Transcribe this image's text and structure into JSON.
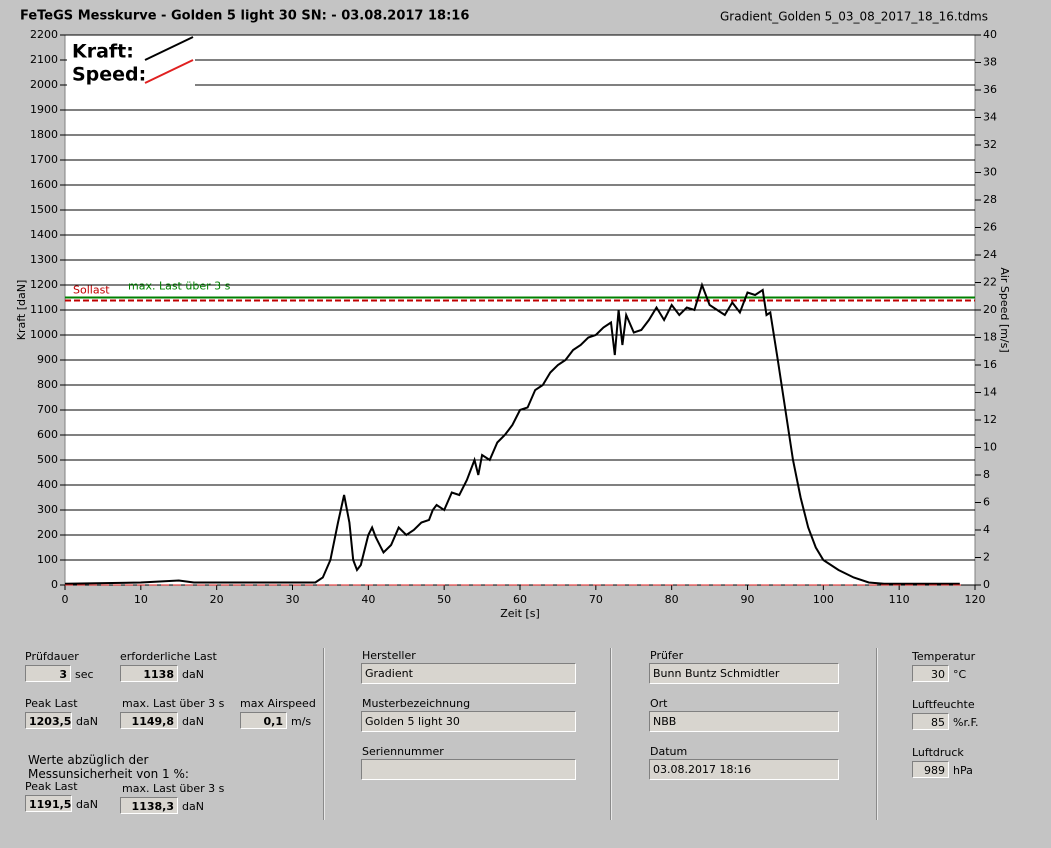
{
  "chart_data": {
    "type": "line",
    "title": "FeTeGS Messkurve - Golden 5 light 30  SN:  - 03.08.2017 18:16",
    "file_name": "Gradient_Golden 5_03_08_2017_18_16.tdms",
    "xlabel": "Zeit [s]",
    "ylabel": "Kraft [daN]",
    "y2label": "Air Speed [m/s]",
    "xlim": [
      0,
      120
    ],
    "ylim": [
      0,
      2200
    ],
    "y2lim": [
      0,
      40
    ],
    "xticks": [
      0,
      10,
      20,
      30,
      40,
      50,
      60,
      70,
      80,
      90,
      100,
      110,
      120
    ],
    "yticks": [
      0,
      100,
      200,
      300,
      400,
      500,
      600,
      700,
      800,
      900,
      1000,
      1100,
      1200,
      1300,
      1400,
      1500,
      1600,
      1700,
      1800,
      1900,
      2000,
      2100,
      2200
    ],
    "y2ticks": [
      0,
      2,
      4,
      6,
      8,
      10,
      12,
      14,
      16,
      18,
      20,
      22,
      24,
      26,
      28,
      30,
      32,
      34,
      36,
      38,
      40
    ],
    "grid": true,
    "legend": "upper left",
    "series": [
      {
        "name": "Kraft:",
        "color": "#000000",
        "x": [
          0,
          10,
          15,
          17,
          20,
          30,
          33,
          34,
          35,
          36,
          36.8,
          37.5,
          38,
          38.5,
          39,
          40,
          40.5,
          41,
          42,
          43,
          44,
          45,
          46,
          47,
          48,
          48.5,
          49,
          50,
          51,
          52,
          53,
          54,
          54.5,
          55,
          56,
          57,
          58,
          59,
          60,
          61,
          62,
          63,
          64,
          65,
          66,
          67,
          68,
          69,
          70,
          71,
          72,
          72.5,
          73,
          73.5,
          74,
          75,
          76,
          77,
          78,
          79,
          80,
          81,
          82,
          83,
          84,
          85,
          86,
          87,
          88,
          89,
          90,
          91,
          92,
          92.5,
          93,
          94,
          95,
          96,
          97,
          98,
          99,
          100,
          102,
          104,
          106,
          108,
          110,
          118
        ],
        "values": [
          5,
          10,
          18,
          10,
          10,
          10,
          10,
          30,
          100,
          250,
          360,
          250,
          100,
          60,
          80,
          200,
          230,
          190,
          130,
          160,
          230,
          200,
          220,
          250,
          260,
          300,
          320,
          300,
          370,
          360,
          420,
          500,
          440,
          520,
          500,
          570,
          600,
          640,
          700,
          710,
          780,
          800,
          850,
          880,
          900,
          940,
          960,
          990,
          1000,
          1030,
          1050,
          920,
          1100,
          960,
          1080,
          1010,
          1020,
          1060,
          1110,
          1060,
          1120,
          1080,
          1110,
          1100,
          1200,
          1120,
          1100,
          1080,
          1130,
          1090,
          1170,
          1160,
          1180,
          1080,
          1090,
          900,
          700,
          500,
          350,
          230,
          150,
          100,
          60,
          30,
          10,
          5,
          5,
          5
        ]
      },
      {
        "name": "Speed:",
        "color": "#e02020",
        "axis": "y2",
        "x": [
          0,
          118.5
        ],
        "values": [
          0,
          0
        ]
      }
    ],
    "reference_lines": [
      {
        "label": "Sollast",
        "value": 1138,
        "color": "#c00000"
      },
      {
        "label": "max. Last über  3 s",
        "value": 1149.8,
        "color": "#008000"
      }
    ]
  },
  "form": {
    "pruefdauer": {
      "label": "Prüfdauer",
      "value": "3",
      "unit": "sec"
    },
    "erf_last": {
      "label": "erforderliche Last",
      "value": "1138",
      "unit": "daN"
    },
    "peak": {
      "label": "Peak Last",
      "value": "1203,5",
      "unit": "daN"
    },
    "max3": {
      "label": "max. Last über  3 s",
      "value": "1149,8",
      "unit": "daN"
    },
    "airspeed": {
      "label": "max Airspeed",
      "value": "0,1",
      "unit": "m/s"
    },
    "note": [
      "Werte abzüglich der",
      "Messunsicherheit von 1  %:"
    ],
    "peak_corr": {
      "label": "Peak Last",
      "value": "1191,5",
      "unit": "daN"
    },
    "max3_corr": {
      "label": "max. Last über  3 s",
      "value": "1138,3",
      "unit": "daN"
    },
    "hersteller": {
      "label": "Hersteller",
      "value": "Gradient"
    },
    "muster": {
      "label": "Musterbezeichnung",
      "value": "Golden 5 light 30"
    },
    "serien": {
      "label": "Seriennummer"
    },
    "pruefer": {
      "label": "Prüfer",
      "value": "Bunn Buntz Schmidtler"
    },
    "ort": {
      "label": "Ort",
      "value": "NBB"
    },
    "datum": {
      "label": "Datum",
      "value": "03.08.2017 18:16"
    },
    "temperatur": {
      "label": "Temperatur",
      "value": "30",
      "unit": "°C"
    },
    "luftfeuchte": {
      "label": "Luftfeuchte",
      "value": "85",
      "unit": "%r.F."
    },
    "luftdruck": {
      "label": "Luftdruck",
      "value": "989",
      "unit": "hPa"
    }
  }
}
